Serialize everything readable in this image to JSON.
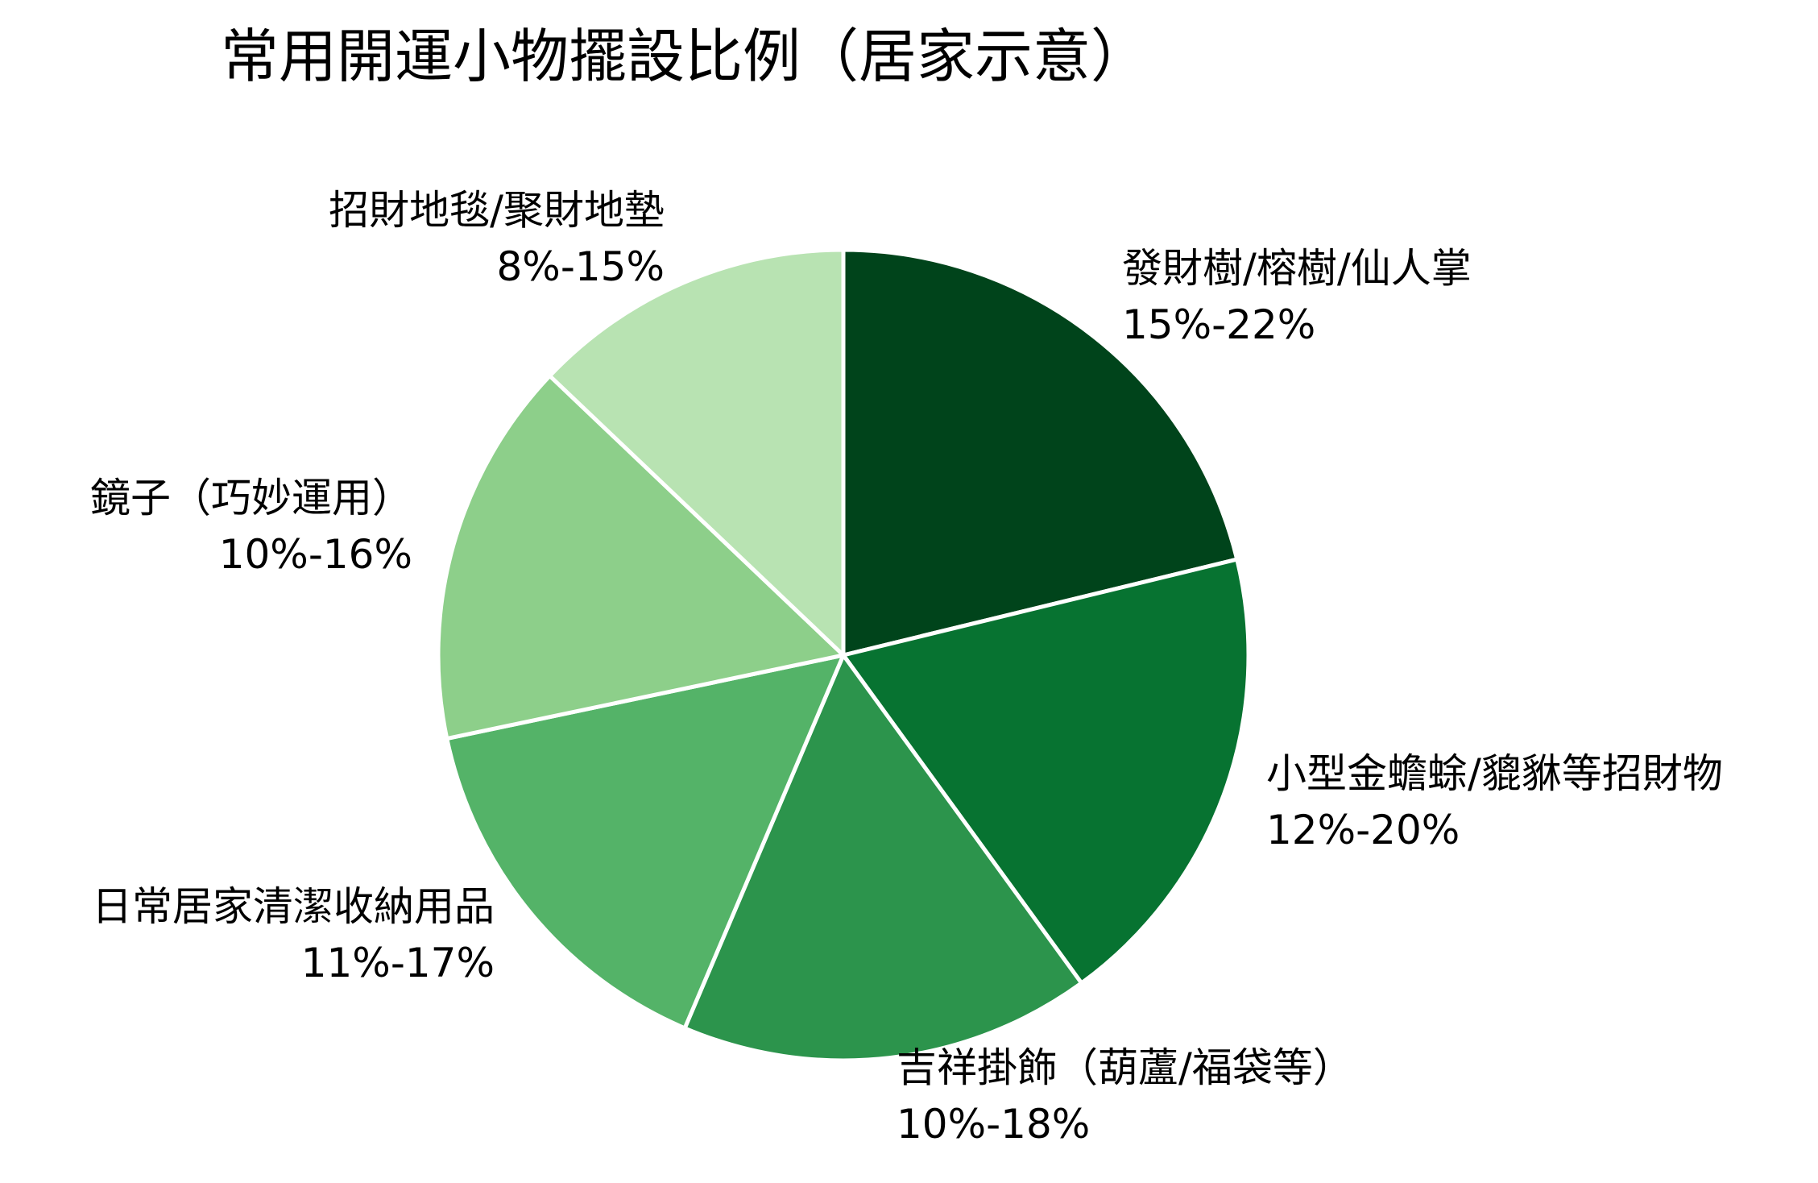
{
  "chart_data": {
    "type": "pie",
    "title": "常用開運小物擺設比例（居家示意）",
    "start_angle": "12 o'clock, clockwise",
    "slices": [
      {
        "label": "發財樹/榕樹/仙人掌",
        "range": "15%-22%",
        "value": 21.2,
        "color": "#00441b"
      },
      {
        "label": "小型金蟾蜍/貔貅等招財物",
        "range": "12%-20%",
        "value": 18.8,
        "color": "#077331"
      },
      {
        "label": "吉祥掛飾（葫蘆/福袋等）",
        "range": "10%-18%",
        "value": 16.4,
        "color": "#2c944c"
      },
      {
        "label": "日常居家清潔收納用品",
        "range": "11%-17%",
        "value": 15.3,
        "color": "#54b368"
      },
      {
        "label": "鏡子（巧妙運用）",
        "range": "10%-16%",
        "value": 15.4,
        "color": "#8dcf8a"
      },
      {
        "label": "招財地毯/聚財地墊",
        "range": "8%-15%",
        "value": 12.9,
        "color": "#b8e3b2"
      }
    ]
  }
}
